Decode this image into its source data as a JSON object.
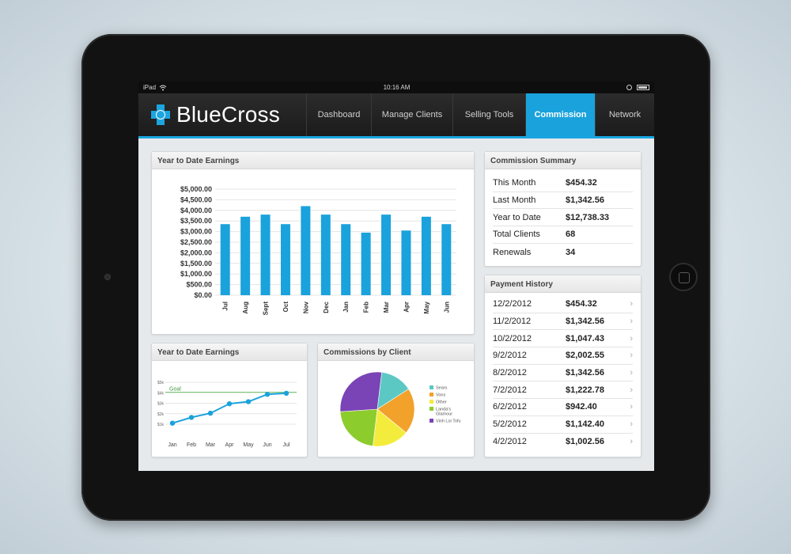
{
  "status_bar": {
    "device": "iPad",
    "time": "10:16 AM"
  },
  "brand": {
    "name": "BlueCross"
  },
  "nav": {
    "tabs": [
      {
        "label": "Dashboard",
        "active": false
      },
      {
        "label": "Manage Clients",
        "active": false
      },
      {
        "label": "Selling Tools",
        "active": false
      },
      {
        "label": "Commission",
        "active": true
      },
      {
        "label": "Network",
        "active": false
      }
    ]
  },
  "colors": {
    "accent": "#1aa2dc",
    "nav_bg": "#1b1b1b"
  },
  "ytd_bar": {
    "title": "Year to Date Earnings"
  },
  "ytd_line": {
    "title": "Year to Date Earnings",
    "goal_label": "Goal"
  },
  "pie": {
    "title": "Commissions by Client"
  },
  "summary": {
    "title": "Commission Summary",
    "rows": [
      {
        "label": "This Month",
        "value": "$454.32"
      },
      {
        "label": "Last Month",
        "value": "$1,342.56"
      },
      {
        "label": "Year to Date",
        "value": "$12,738.33"
      },
      {
        "label": "Total Clients",
        "value": "68"
      },
      {
        "label": "Renewals",
        "value": "34"
      }
    ]
  },
  "payments": {
    "title": "Payment History",
    "rows": [
      {
        "date": "12/2/2012",
        "amount": "$454.32"
      },
      {
        "date": "11/2/2012",
        "amount": "$1,342.56"
      },
      {
        "date": "10/2/2012",
        "amount": "$1,047.43"
      },
      {
        "date": "9/2/2012",
        "amount": "$2,002.55"
      },
      {
        "date": "8/2/2012",
        "amount": "$1,342.56"
      },
      {
        "date": "7/2/2012",
        "amount": "$1,222.78"
      },
      {
        "date": "6/2/2012",
        "amount": "$942.40"
      },
      {
        "date": "5/2/2012",
        "amount": "$1,142.40"
      },
      {
        "date": "4/2/2012",
        "amount": "$1,002.56"
      }
    ]
  },
  "chart_data": [
    {
      "type": "bar",
      "title": "Year to Date Earnings",
      "categories": [
        "Jul",
        "Aug",
        "Sept",
        "Oct",
        "Nov",
        "Dec",
        "Jan",
        "Feb",
        "Mar",
        "Apr",
        "May",
        "Jun"
      ],
      "values": [
        3350,
        3700,
        3800,
        3350,
        4200,
        3800,
        3350,
        2950,
        3800,
        3050,
        3700,
        3350
      ],
      "y_ticks": [
        "$0.00",
        "$500.00",
        "$1,000.00",
        "$1,500.00",
        "$2,000.00",
        "$2,500.00",
        "$3,000.00",
        "$3,500.00",
        "$4,000.00",
        "$4,500.00",
        "$5,000.00"
      ],
      "ylim": [
        0,
        5000
      ],
      "color": "#1aa2dc",
      "grid": true
    },
    {
      "type": "line",
      "title": "Year to Date Earnings",
      "categories": [
        "Jan",
        "Feb",
        "Mar",
        "Apr",
        "May",
        "Jun",
        "Jul"
      ],
      "values": [
        1.1,
        1.65,
        2.05,
        2.95,
        3.15,
        3.85,
        3.95
      ],
      "y_ticks": [
        "$1k",
        "$2k",
        "$3k",
        "$4k",
        "$5k"
      ],
      "ylim": [
        1,
        5
      ],
      "goal": 4.05,
      "goal_label": "Goal",
      "color": "#1aa2dc",
      "goal_color": "#6cc16a",
      "grid": true
    },
    {
      "type": "pie",
      "title": "Commissions by Client",
      "labels": [
        "Sears",
        "Vons",
        "Other",
        "Landa's Glamour",
        "Vinh Loi Tofu"
      ],
      "values": [
        14,
        20,
        16,
        22,
        28
      ],
      "colors": [
        "#5cc8c4",
        "#f2a12b",
        "#f4ec3c",
        "#8dcc2d",
        "#7a43b6"
      ],
      "legend": "right"
    }
  ]
}
